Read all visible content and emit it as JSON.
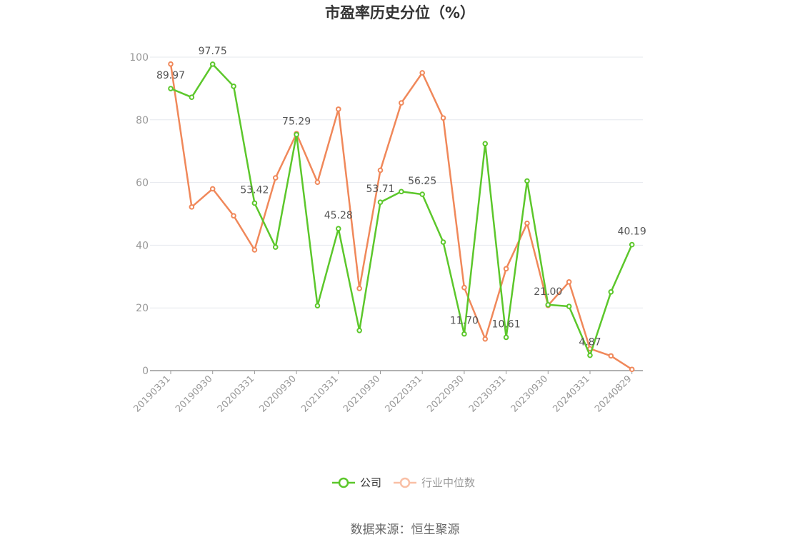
{
  "chart_data": {
    "type": "line",
    "title": "市盈率历史分位（%）",
    "xlabel": "",
    "ylabel": "",
    "ylim": [
      0,
      100
    ],
    "yticks": [
      0,
      20,
      40,
      60,
      80,
      100
    ],
    "x_tick_labels": [
      "20190331",
      "20190930",
      "20200331",
      "20200930",
      "20210331",
      "20210930",
      "20220331",
      "20220930",
      "20230331",
      "20230930",
      "20240331",
      "20240829"
    ],
    "grid": true,
    "legend_position": "bottom-center",
    "series": [
      {
        "name": "公司",
        "color": "#5cc72b",
        "values": [
          89.97,
          87.2,
          97.75,
          90.7,
          53.42,
          39.4,
          75.29,
          20.7,
          45.28,
          12.8,
          53.71,
          57.1,
          56.25,
          41.0,
          11.7,
          72.4,
          10.61,
          60.5,
          21.0,
          20.5,
          4.87,
          25.1,
          40.19
        ]
      },
      {
        "name": "行业中位数",
        "color": "#f0885a",
        "values": [
          97.8,
          52.2,
          58.0,
          49.4,
          38.5,
          61.5,
          75.6,
          60.1,
          83.4,
          26.2,
          63.9,
          85.4,
          95.0,
          80.6,
          26.5,
          10.1,
          32.5,
          47.0,
          20.8,
          28.3,
          7.0,
          4.7,
          0.4
        ]
      }
    ],
    "data_labels": [
      {
        "series": 0,
        "index": 0,
        "text": "89.97"
      },
      {
        "series": 0,
        "index": 2,
        "text": "97.75"
      },
      {
        "series": 0,
        "index": 4,
        "text": "53.42"
      },
      {
        "series": 0,
        "index": 6,
        "text": "75.29"
      },
      {
        "series": 0,
        "index": 8,
        "text": "45.28"
      },
      {
        "series": 0,
        "index": 10,
        "text": "53.71"
      },
      {
        "series": 0,
        "index": 12,
        "text": "56.25"
      },
      {
        "series": 0,
        "index": 14,
        "text": "11.70"
      },
      {
        "series": 0,
        "index": 16,
        "text": "10.61"
      },
      {
        "series": 0,
        "index": 18,
        "text": "21.00"
      },
      {
        "series": 0,
        "index": 20,
        "text": "4.87"
      },
      {
        "series": 0,
        "index": 22,
        "text": "40.19"
      }
    ],
    "legend": [
      {
        "label": "公司",
        "color": "#5cc72b",
        "text_color": "#333333"
      },
      {
        "label": "行业中位数",
        "color": "#f9bfa5",
        "text_color": "#999999"
      }
    ]
  },
  "footer": {
    "source": "数据来源：恒生聚源"
  }
}
